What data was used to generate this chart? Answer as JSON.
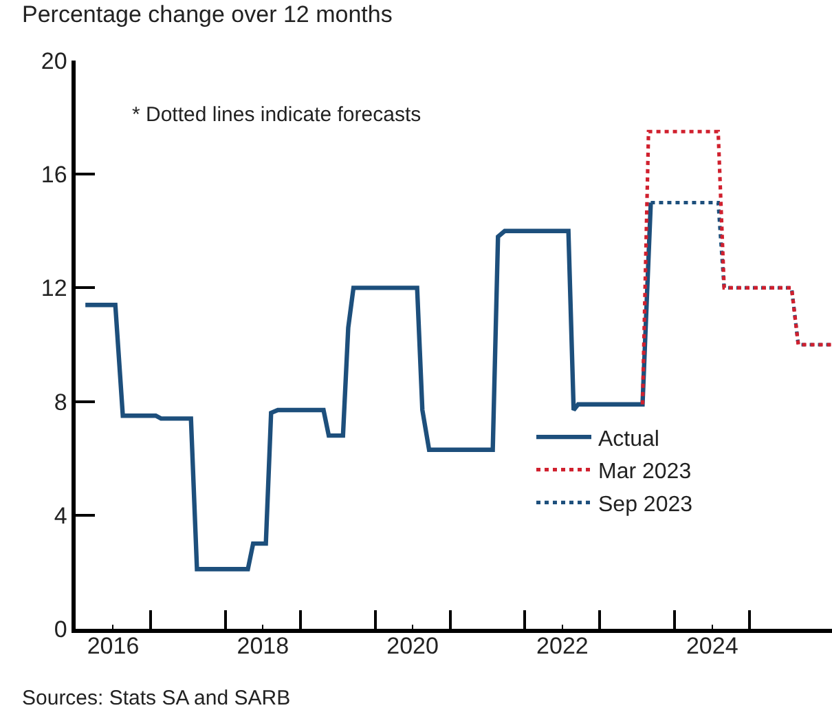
{
  "chart_data": {
    "type": "line",
    "ylabel": "Percentage change over 12 months",
    "annotations": [
      "* Dotted lines indicate forecasts",
      "Sources: Stats SA and SARB"
    ],
    "xlim": [
      2016,
      2026.1
    ],
    "xticks": [
      {
        "value": 2016.5,
        "label": "2016"
      },
      {
        "value": 2018.5,
        "label": "2018"
      },
      {
        "value": 2020.5,
        "label": "2020"
      },
      {
        "value": 2022.5,
        "label": "2022"
      },
      {
        "value": 2024.5,
        "label": "2024"
      },
      {
        "value": 2017,
        "label": null
      },
      {
        "value": 2018,
        "label": null
      },
      {
        "value": 2019,
        "label": null
      },
      {
        "value": 2020,
        "label": null
      },
      {
        "value": 2021,
        "label": null
      },
      {
        "value": 2022,
        "label": null
      },
      {
        "value": 2023,
        "label": null
      },
      {
        "value": 2024,
        "label": null
      },
      {
        "value": 2025,
        "label": null
      }
    ],
    "ylim": [
      0,
      20
    ],
    "yticks": [
      0,
      4,
      8,
      12,
      16,
      20
    ],
    "legend": "bottom right",
    "marker": "none",
    "series": [
      {
        "name": "Actual",
        "color": "#1d4f7c",
        "line_style": "solid",
        "x": [
          2016.13,
          2016.53,
          2016.63,
          2017.07,
          2017.14,
          2017.54,
          2017.62,
          2018.3,
          2018.37,
          2018.54,
          2018.61,
          2018.7,
          2019.31,
          2019.38,
          2019.57,
          2019.64,
          2019.71,
          2020.56,
          2020.63,
          2020.72,
          2021.57,
          2021.64,
          2021.73,
          2022.58,
          2022.65,
          2022.71,
          2023.57,
          2023.68
        ],
        "values": [
          11.4,
          11.4,
          7.5,
          7.5,
          7.4,
          7.4,
          2.1,
          2.1,
          3.0,
          3.0,
          7.6,
          7.7,
          7.7,
          6.8,
          6.8,
          10.6,
          12.0,
          12.0,
          7.7,
          6.3,
          6.3,
          13.8,
          14.0,
          14.0,
          7.7,
          7.9,
          7.9,
          15.0
        ]
      },
      {
        "name": "Mar 2023",
        "color": "#d0202e",
        "line_style": "dotted",
        "x": [
          2023.57,
          2023.65,
          2024.58,
          2024.66,
          2025.56,
          2025.65,
          2026.1
        ],
        "values": [
          7.9,
          17.5,
          17.5,
          12.0,
          12.0,
          10.0,
          10.0
        ]
      },
      {
        "name": "Sep 2023",
        "color": "#1d4f7c",
        "line_style": "dotted",
        "x": [
          2023.68,
          2024.58,
          2024.66,
          2025.56,
          2025.65,
          2026.1
        ],
        "values": [
          15.0,
          15.0,
          12.0,
          12.0,
          10.0,
          10.0
        ]
      }
    ]
  }
}
